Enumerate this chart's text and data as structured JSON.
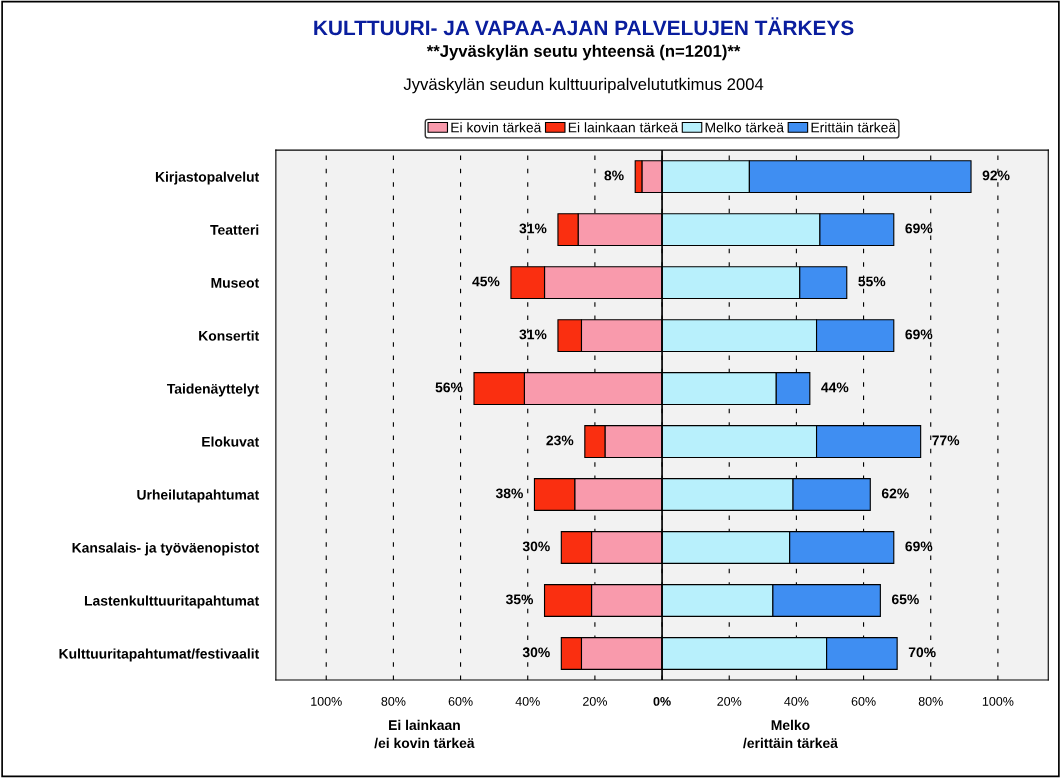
{
  "chart_data": {
    "type": "bar",
    "orientation": "horizontal",
    "stacked": true,
    "title": "KULTTUURI- JA VAPAA-AJAN PALVELUJEN TÄRKEYS",
    "subtitle": "**Jyväskylän seutu yhteensä (n=1201)**",
    "annotations": [
      "Jyväskylän seudun kulttuuripalvelututkimus 2004",
      "Ei lainkaan\n/ei kovin tärkeä",
      "Melko\n/erittäin tärkeä",
      {
        "text": "8%",
        "x": -8,
        "y": "Kirjastopalvelut"
      },
      {
        "text": "31%",
        "x": -31,
        "y": "Teatteri"
      },
      {
        "text": "45%",
        "x": -45,
        "y": "Museot"
      },
      {
        "text": "31%",
        "x": -31,
        "y": "Konsertit"
      },
      {
        "text": "56%",
        "x": -56,
        "y": "Taidenäyttelyt"
      },
      {
        "text": "23%",
        "x": -23,
        "y": "Elokuvat"
      },
      {
        "text": "38%",
        "x": -38,
        "y": "Urheilutapahtumat"
      },
      {
        "text": "30%",
        "x": -30,
        "y": "Kansalais- ja työväenopistot"
      },
      {
        "text": "35%",
        "x": -35,
        "y": "Lastenkulttuuritapahtumat"
      },
      {
        "text": "30%",
        "x": -30,
        "y": "Kulttuuritapahtumat/festivaalit"
      },
      {
        "text": "92%",
        "x": 92,
        "y": "Kirjastopalvelut"
      },
      {
        "text": "69%",
        "x": 69,
        "y": "Teatteri"
      },
      {
        "text": "55%",
        "x": 55,
        "y": "Museot"
      },
      {
        "text": "69%",
        "x": 69,
        "y": "Konsertit"
      },
      {
        "text": "44%",
        "x": 44,
        "y": "Taidenäyttelyt"
      },
      {
        "text": "77%",
        "x": 77,
        "y": "Elokuvat"
      },
      {
        "text": "62%",
        "x": 62,
        "y": "Urheilutapahtumat"
      },
      {
        "text": "69%",
        "x": 69,
        "y": "Kansalais- ja työväenopistot"
      },
      {
        "text": "65%",
        "x": 65,
        "y": "Lastenkulttuuritapahtumat"
      },
      {
        "text": "70%",
        "x": 70,
        "y": "Kulttuuritapahtumat/festivaalit"
      }
    ],
    "categories": [
      "Kirjastopalvelut",
      "Teatteri",
      "Museot",
      "Konsertit",
      "Taidenäyttelyt",
      "Elokuvat",
      "Urheilutapahtumat",
      "Kansalais- ja työväenopistot",
      "Lastenkulttuuritapahtumat",
      "Kulttuuritapahtumat/festivaalit"
    ],
    "series": [
      {
        "name": "Ei kovin tärkeä",
        "color": "#f99aac",
        "values": [
          -6,
          -25,
          -35,
          -24,
          -41,
          -17,
          -26,
          -21,
          -21,
          -24
        ]
      },
      {
        "name": "Ei lainkaan tärkeä",
        "color": "#fa2f10",
        "values": [
          -2,
          -6,
          -10,
          -7,
          -15,
          -6,
          -12,
          -9,
          -14,
          -6
        ]
      },
      {
        "name": "Melko tärkeä",
        "color": "#b8f0fc",
        "values": [
          26,
          47,
          41,
          46,
          34,
          46,
          39,
          38,
          33,
          49
        ]
      },
      {
        "name": "Erittäin tärkeä",
        "color": "#3f8ef2",
        "values": [
          66,
          22,
          14,
          23,
          10,
          31,
          23,
          31,
          32,
          21
        ]
      }
    ],
    "xlim": [
      -115,
      115
    ],
    "xticks": [
      {
        "value": -100,
        "label": "100%"
      },
      {
        "value": -80,
        "label": "80%"
      },
      {
        "value": -60,
        "label": "60%"
      },
      {
        "value": -40,
        "label": "40%"
      },
      {
        "value": -20,
        "label": "20%"
      },
      {
        "value": 0,
        "label": "0%"
      },
      {
        "value": 20,
        "label": "20%"
      },
      {
        "value": 40,
        "label": "40%"
      },
      {
        "value": 60,
        "label": "60%"
      },
      {
        "value": 80,
        "label": "80%"
      },
      {
        "value": 100,
        "label": "100%"
      }
    ],
    "grid": "x",
    "legend": "top"
  }
}
